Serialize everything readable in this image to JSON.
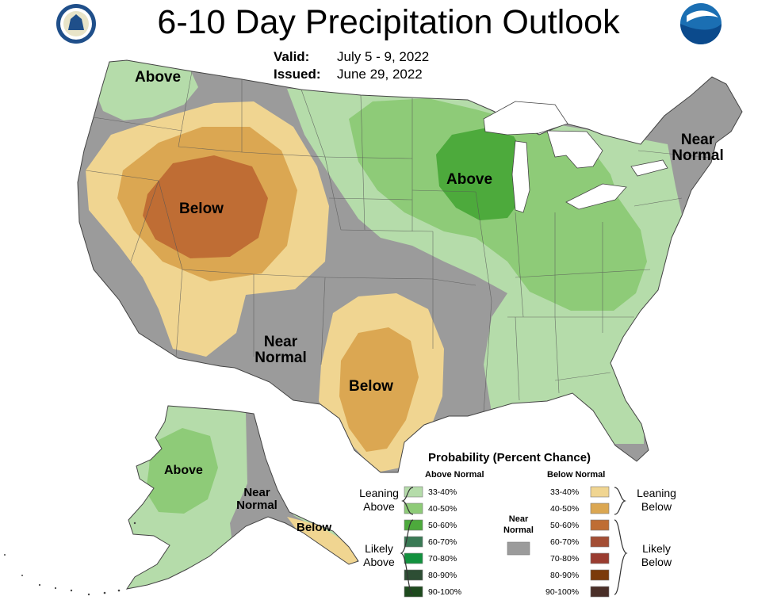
{
  "title": "6-10 Day Precipitation Outlook",
  "valid": {
    "label": "Valid:",
    "value": "July 5 - 9, 2022"
  },
  "issued": {
    "label": "Issued:",
    "value": "June 29, 2022"
  },
  "colors": {
    "near_normal": "#9b9b9b",
    "above_33_40": "#b5dcaa",
    "above_40_50": "#8ecb78",
    "above_50_60": "#4daa3c",
    "above_60_70": "#3a7a55",
    "above_70_80": "#12913e",
    "above_80_90": "#2d4e34",
    "above_90_100": "#1e4a1e",
    "below_33_40": "#f0d591",
    "below_40_50": "#dba752",
    "below_50_60": "#bf6d34",
    "below_60_70": "#a34e34",
    "below_70_80": "#9a3c30",
    "below_80_90": "#7b3a0a",
    "below_90_100": "#4a2f28"
  },
  "map_labels": {
    "nw_above": "Above",
    "west_below": "Below",
    "sw_near_normal": [
      "Near",
      "Normal"
    ],
    "tx_below": "Below",
    "mw_above": "Above",
    "ne_near_normal": [
      "Near",
      "Normal"
    ],
    "ak_above": "Above",
    "ak_near_normal": [
      "Near",
      "Normal"
    ],
    "ak_below": "Below"
  },
  "legend": {
    "title": "Probability (Percent Chance)",
    "above_header": "Above Normal",
    "below_header": "Below Normal",
    "near_normal": [
      "Near",
      "Normal"
    ],
    "leaning_above": [
      "Leaning",
      "Above"
    ],
    "likely_above": [
      "Likely",
      "Above"
    ],
    "leaning_below": [
      "Leaning",
      "Below"
    ],
    "likely_below": [
      "Likely",
      "Below"
    ],
    "pct": [
      "33-40%",
      "40-50%",
      "50-60%",
      "60-70%",
      "70-80%",
      "80-90%",
      "90-100%"
    ]
  }
}
